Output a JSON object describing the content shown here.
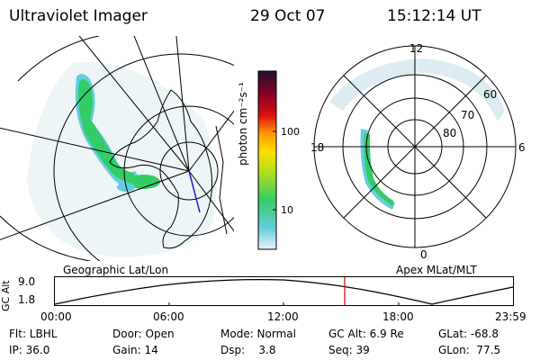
{
  "header": {
    "instrument": "Ultraviolet Imager",
    "date": "29 Oct 07",
    "time": "15:12:14 UT"
  },
  "colorbar": {
    "label": "photon cm⁻²s⁻¹",
    "ticks": [
      "100",
      "10"
    ]
  },
  "geo_panel": {
    "caption": "Geographic Lat/Lon"
  },
  "apex_panel": {
    "caption": "Apex MLat/MLT",
    "mlt_labels": [
      "12",
      "18",
      "6",
      "0"
    ],
    "lat_labels": [
      "60",
      "70",
      "80"
    ]
  },
  "altitude_plot": {
    "ylabel": "GC Alt",
    "yticks": [
      "9.0",
      "1.8"
    ],
    "xticks": [
      "00:00",
      "06:00",
      "12:00",
      "18:00",
      "23:59"
    ]
  },
  "info": {
    "row1": [
      {
        "label": "Flt: LBHL"
      },
      {
        "label": "Door: Open"
      },
      {
        "label": "Mode: Normal"
      },
      {
        "label": "GC Alt: 6.9 Re"
      },
      {
        "label": "GLat: -68.8"
      }
    ],
    "row2": [
      {
        "label": "IP: 36.0"
      },
      {
        "label": "Gain: 14"
      },
      {
        "label": "Dsp:    3.8"
      },
      {
        "label": "Seq: 39"
      },
      {
        "label": "GLon:  77.5"
      }
    ]
  },
  "colors": {
    "marker": "#d00000",
    "aurora_green": "#33cc66",
    "aurora_cyan": "#66ccdd",
    "noise": "#cfe6ea"
  }
}
